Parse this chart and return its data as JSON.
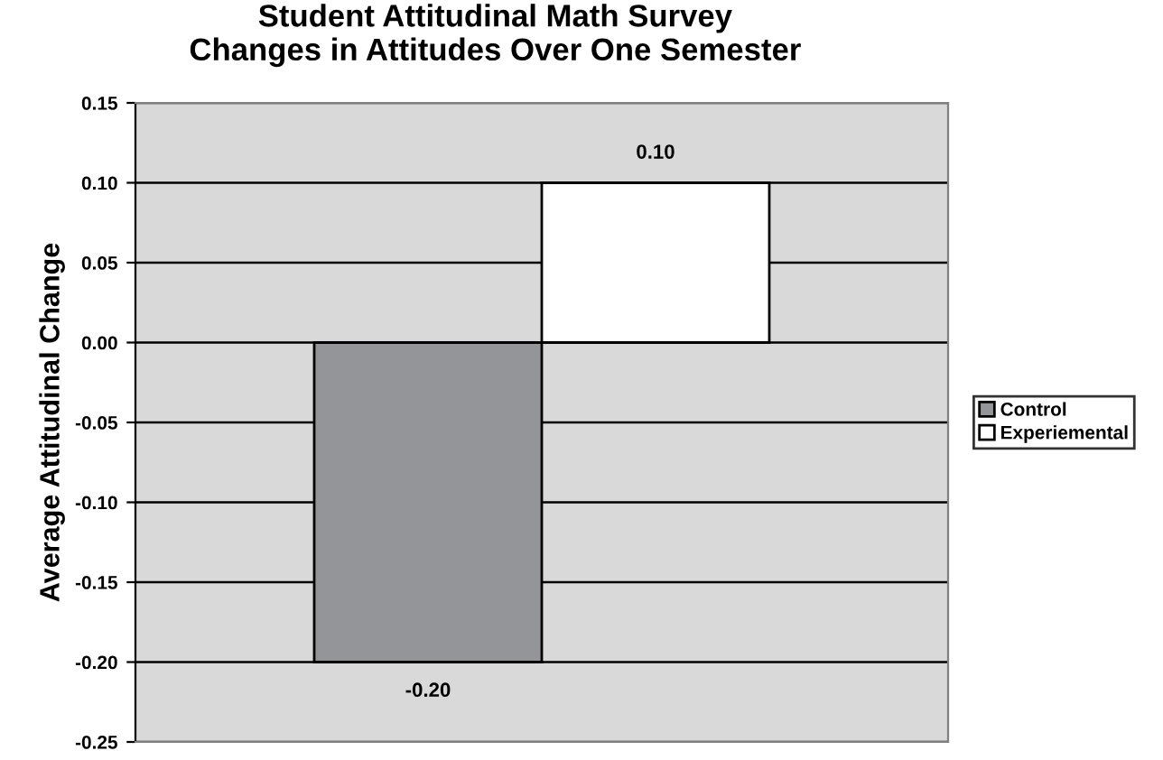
{
  "chart_data": {
    "type": "bar",
    "title": "Student Attitudinal Math Survey\nChanges in Attitudes Over One Semester",
    "ylabel": "Average Attitudinal Change",
    "categories": [
      null
    ],
    "series": [
      {
        "name": "Control",
        "color": "#939598",
        "values": [
          -0.2
        ],
        "value_labels": [
          "-0.20"
        ]
      },
      {
        "name": "Experiemental",
        "color": "#ffffff",
        "values": [
          0.1
        ],
        "value_labels": [
          "0.10"
        ]
      }
    ],
    "ylim": [
      -0.25,
      0.15
    ],
    "yticks": [
      {
        "value": -0.25,
        "label": "-0.25"
      },
      {
        "value": -0.2,
        "label": "-0.20"
      },
      {
        "value": -0.15,
        "label": "-0.15"
      },
      {
        "value": -0.1,
        "label": "-0.10"
      },
      {
        "value": -0.05,
        "label": "-0.05"
      },
      {
        "value": 0,
        "label": "0.00"
      },
      {
        "value": 0.05,
        "label": "0.05"
      },
      {
        "value": 0.1,
        "label": "0.10"
      },
      {
        "value": 0.15,
        "label": "0.15"
      }
    ],
    "grid": "y",
    "legend": "right"
  }
}
